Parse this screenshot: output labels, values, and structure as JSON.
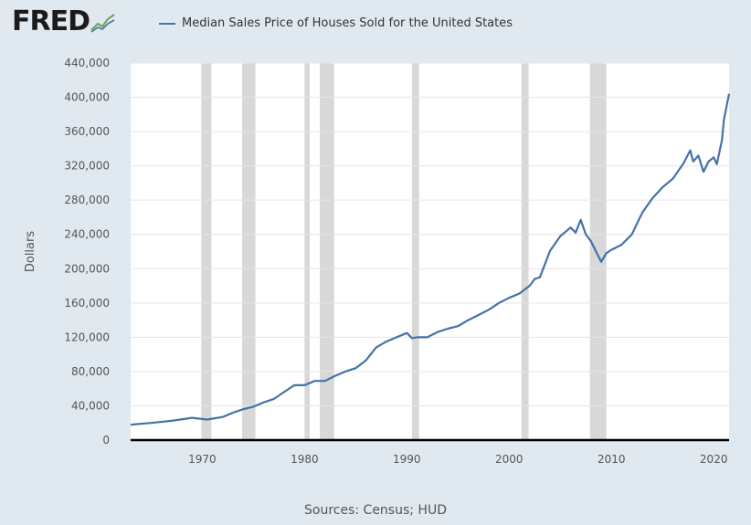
{
  "branding": {
    "logo_text": "FRED",
    "logo_icon": "line-chart-icon"
  },
  "chart_data": {
    "type": "line",
    "title": "",
    "legend_position": "top-left",
    "ylabel": "Dollars",
    "xlabel": "",
    "source": "Sources: Census; HUD",
    "xlim": [
      1963,
      2021.5
    ],
    "ylim": [
      0,
      440000
    ],
    "y_ticks": [
      0,
      40000,
      80000,
      120000,
      160000,
      200000,
      240000,
      280000,
      320000,
      360000,
      400000,
      440000
    ],
    "y_tick_labels": [
      "0",
      "40,000",
      "80,000",
      "120,000",
      "160,000",
      "200,000",
      "240,000",
      "280,000",
      "320,000",
      "360,000",
      "400,000",
      "440,000"
    ],
    "x_ticks": [
      1970,
      1980,
      1990,
      2000,
      2010,
      2020
    ],
    "x_tick_labels": [
      "1970",
      "1980",
      "1990",
      "2000",
      "2010",
      "2020"
    ],
    "grid": "horizontal",
    "recessions": [
      [
        1969.9,
        1970.9
      ],
      [
        1973.9,
        1975.2
      ],
      [
        1980.0,
        1980.5
      ],
      [
        1981.5,
        1982.9
      ],
      [
        1990.5,
        1991.2
      ],
      [
        2001.2,
        2001.9
      ],
      [
        2007.9,
        2009.5
      ]
    ],
    "colors": {
      "series": "#4572a7",
      "recession": "#d8d8d8",
      "plot_bg": "#ffffff",
      "page_bg": "#e1e9f0"
    },
    "series": [
      {
        "name": "Median Sales Price of Houses Sold for the United States",
        "x": [
          1963,
          1965,
          1967,
          1969,
          1970.5,
          1971,
          1972,
          1973,
          1974,
          1975,
          1976,
          1977,
          1978,
          1979,
          1980,
          1981,
          1982,
          1983,
          1984,
          1985,
          1986,
          1987,
          1988,
          1989,
          1990,
          1990.5,
          1991,
          1992,
          1993,
          1994,
          1995,
          1996,
          1997,
          1998,
          1999,
          2000,
          2001,
          2002,
          2002.5,
          2003,
          2004,
          2005,
          2006,
          2006.5,
          2007,
          2007.5,
          2008,
          2009,
          2009.5,
          2010,
          2011,
          2012,
          2013,
          2014,
          2015,
          2016,
          2017,
          2017.7,
          2018,
          2018.5,
          2019,
          2019.5,
          2020,
          2020.3,
          2020.8,
          2021,
          2021.5
        ],
        "values": [
          18000,
          20000,
          22500,
          26000,
          24000,
          25000,
          27000,
          32000,
          36000,
          39000,
          44000,
          48000,
          56000,
          64000,
          64000,
          69000,
          69000,
          75000,
          80000,
          84000,
          93000,
          108000,
          115000,
          120000,
          125000,
          119000,
          120000,
          120000,
          126000,
          130000,
          133000,
          140000,
          146000,
          152000,
          160000,
          166000,
          171000,
          180000,
          188000,
          190000,
          221000,
          238000,
          248000,
          242000,
          257000,
          240000,
          232000,
          208000,
          218000,
          222000,
          228000,
          240000,
          265000,
          282000,
          295000,
          305000,
          322000,
          338000,
          325000,
          332000,
          313000,
          325000,
          330000,
          322000,
          350000,
          374000,
          404000
        ]
      }
    ]
  }
}
